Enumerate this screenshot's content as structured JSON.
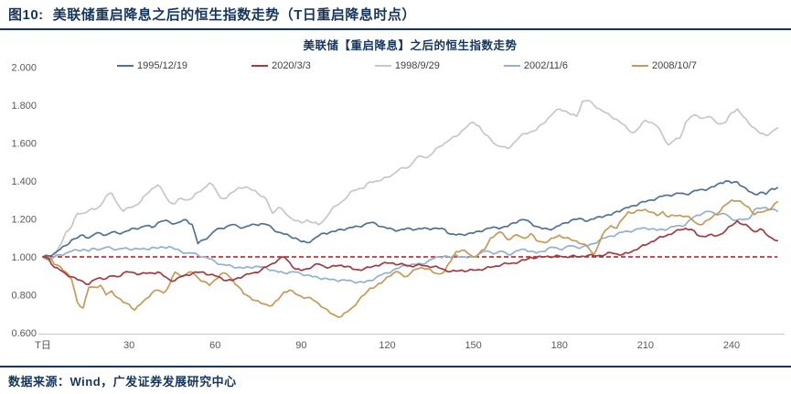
{
  "header": {
    "figure_label": "图10:",
    "title": "美联储重启降息之后的恒生指数走势（T日重启降息时点）"
  },
  "footer": {
    "source_text": "数据来源：Wind，广发证券发展研究中心"
  },
  "colors": {
    "accent_navy": "#15365c",
    "axis_text": "#595959",
    "axis_line": "#c8c8c8",
    "reference_red": "#e00000"
  },
  "chart_data": {
    "type": "line",
    "title": "美联储【重启降息】之后的恒生指数走势",
    "xlabel": "",
    "ylabel": "",
    "legend_position": "top",
    "grid": false,
    "x_axis": {
      "tick_days": [
        0,
        30,
        60,
        90,
        120,
        150,
        180,
        210,
        240
      ],
      "tick_labels": [
        "T日",
        "30",
        "60",
        "90",
        "120",
        "150",
        "180",
        "210",
        "240"
      ],
      "range_days": [
        0,
        256
      ]
    },
    "y_axis": {
      "ticks": [
        0.6,
        0.8,
        1.0,
        1.2,
        1.4,
        1.6,
        1.8,
        2.0
      ],
      "tick_labels": [
        "0.600",
        "0.800",
        "1.000",
        "1.200",
        "1.400",
        "1.600",
        "1.800",
        "2.000"
      ],
      "range": [
        0.6,
        2.0
      ]
    },
    "reference_line": {
      "value": 1.0,
      "color": "#e00000",
      "style": "dashed"
    },
    "sample_step_days": 2,
    "series": [
      {
        "name": "1995/12/19",
        "color": "#4e7293",
        "values": [
          1.0,
          1.005,
          1.02,
          1.04,
          1.06,
          1.09,
          1.1,
          1.115,
          1.1,
          1.12,
          1.125,
          1.115,
          1.13,
          1.125,
          1.13,
          1.14,
          1.15,
          1.155,
          1.165,
          1.155,
          1.18,
          1.19,
          1.185,
          1.175,
          1.185,
          1.195,
          1.17,
          1.07,
          1.09,
          1.11,
          1.14,
          1.15,
          1.16,
          1.17,
          1.16,
          1.155,
          1.165,
          1.17,
          1.175,
          1.17,
          1.15,
          1.13,
          1.12,
          1.11,
          1.1,
          1.08,
          1.075,
          1.09,
          1.11,
          1.125,
          1.13,
          1.135,
          1.145,
          1.15,
          1.155,
          1.16,
          1.17,
          1.18,
          1.175,
          1.16,
          1.15,
          1.145,
          1.14,
          1.145,
          1.15,
          1.145,
          1.148,
          1.15,
          1.15,
          1.148,
          1.145,
          1.12,
          1.115,
          1.118,
          1.122,
          1.125,
          1.135,
          1.145,
          1.152,
          1.155,
          1.155,
          1.16,
          1.18,
          1.192,
          1.195,
          1.18,
          1.16,
          1.148,
          1.147,
          1.15,
          1.165,
          1.18,
          1.192,
          1.198,
          1.2,
          1.19,
          1.2,
          1.212,
          1.218,
          1.22,
          1.24,
          1.25,
          1.26,
          1.27,
          1.285,
          1.29,
          1.3,
          1.31,
          1.32,
          1.325,
          1.33,
          1.335,
          1.33,
          1.34,
          1.35,
          1.355,
          1.36,
          1.37,
          1.39,
          1.4,
          1.39,
          1.395,
          1.37,
          1.345,
          1.33,
          1.34,
          1.33,
          1.36,
          1.365
        ]
      },
      {
        "name": "2020/3/3",
        "color": "#a13b40",
        "values": [
          1.0,
          0.99,
          0.945,
          0.93,
          0.91,
          0.895,
          0.88,
          0.87,
          0.855,
          0.88,
          0.89,
          0.885,
          0.9,
          0.895,
          0.915,
          0.92,
          0.915,
          0.91,
          0.913,
          0.915,
          0.92,
          0.9,
          0.88,
          0.875,
          0.895,
          0.905,
          0.912,
          0.918,
          0.92,
          0.905,
          0.9,
          0.89,
          0.875,
          0.875,
          0.89,
          0.9,
          0.91,
          0.918,
          0.93,
          0.948,
          0.965,
          0.985,
          1.0,
          0.97,
          0.935,
          0.928,
          0.938,
          0.95,
          0.963,
          0.95,
          0.945,
          0.952,
          0.956,
          0.95,
          0.935,
          0.932,
          0.938,
          0.944,
          0.955,
          0.962,
          0.967,
          0.968,
          0.96,
          0.958,
          0.952,
          0.955,
          0.955,
          0.952,
          0.948,
          0.942,
          0.933,
          0.922,
          0.925,
          0.93,
          0.926,
          0.93,
          0.933,
          0.938,
          0.945,
          0.952,
          0.96,
          0.964,
          0.968,
          0.974,
          0.983,
          0.998,
          0.995,
          1.0,
          1.004,
          1.0,
          1.004,
          1.0,
          1.004,
          1.0,
          1.004,
          1.008,
          1.005,
          1.008,
          1.012,
          1.022,
          1.016,
          1.012,
          1.02,
          1.035,
          1.05,
          1.062,
          1.08,
          1.095,
          1.105,
          1.118,
          1.13,
          1.142,
          1.15,
          1.145,
          1.115,
          1.108,
          1.115,
          1.11,
          1.118,
          1.14,
          1.165,
          1.19,
          1.17,
          1.158,
          1.132,
          1.148,
          1.12,
          1.1,
          1.085
        ]
      },
      {
        "name": "1998/9/29",
        "color": "#c7c7c7",
        "values": [
          1.0,
          0.98,
          1.0,
          1.06,
          1.13,
          1.16,
          1.23,
          1.23,
          1.245,
          1.25,
          1.27,
          1.32,
          1.335,
          1.28,
          1.24,
          1.26,
          1.27,
          1.29,
          1.33,
          1.36,
          1.38,
          1.34,
          1.29,
          1.28,
          1.31,
          1.3,
          1.31,
          1.34,
          1.36,
          1.39,
          1.36,
          1.31,
          1.31,
          1.34,
          1.365,
          1.365,
          1.36,
          1.35,
          1.32,
          1.3,
          1.23,
          1.26,
          1.24,
          1.21,
          1.19,
          1.18,
          1.195,
          1.18,
          1.17,
          1.195,
          1.235,
          1.27,
          1.29,
          1.315,
          1.35,
          1.36,
          1.365,
          1.395,
          1.4,
          1.405,
          1.42,
          1.435,
          1.46,
          1.468,
          1.48,
          1.52,
          1.53,
          1.525,
          1.55,
          1.58,
          1.6,
          1.62,
          1.635,
          1.665,
          1.69,
          1.71,
          1.69,
          1.645,
          1.62,
          1.59,
          1.58,
          1.57,
          1.6,
          1.63,
          1.65,
          1.66,
          1.67,
          1.7,
          1.73,
          1.76,
          1.78,
          1.77,
          1.75,
          1.74,
          1.82,
          1.825,
          1.8,
          1.78,
          1.76,
          1.74,
          1.725,
          1.7,
          1.67,
          1.655,
          1.685,
          1.72,
          1.71,
          1.69,
          1.64,
          1.59,
          1.615,
          1.625,
          1.71,
          1.74,
          1.745,
          1.73,
          1.74,
          1.72,
          1.7,
          1.71,
          1.76,
          1.78,
          1.74,
          1.705,
          1.68,
          1.65,
          1.64,
          1.66,
          1.68
        ]
      },
      {
        "name": "2002/11/6",
        "color": "#92b1cc",
        "values": [
          1.0,
          0.99,
          1.0,
          1.01,
          1.02,
          1.03,
          1.035,
          1.04,
          1.03,
          1.045,
          1.04,
          1.05,
          1.045,
          1.04,
          1.045,
          1.04,
          1.045,
          1.04,
          1.04,
          1.05,
          1.045,
          1.05,
          1.055,
          1.04,
          1.03,
          1.02,
          1.02,
          1.01,
          1.0,
          0.99,
          0.975,
          0.96,
          0.955,
          0.95,
          0.945,
          0.94,
          0.945,
          0.95,
          0.945,
          0.94,
          0.93,
          0.92,
          0.915,
          0.92,
          0.92,
          0.91,
          0.905,
          0.895,
          0.89,
          0.887,
          0.88,
          0.877,
          0.878,
          0.875,
          0.87,
          0.868,
          0.865,
          0.875,
          0.89,
          0.905,
          0.915,
          0.93,
          0.94,
          0.955,
          0.958,
          0.96,
          0.963,
          0.975,
          0.99,
          1.0,
          1.005,
          0.995,
          1.01,
          1.0,
          0.995,
          1.0,
          1.015,
          1.03,
          1.025,
          1.02,
          1.03,
          1.012,
          1.022,
          1.035,
          1.04,
          1.03,
          1.02,
          1.028,
          1.045,
          1.05,
          1.04,
          1.05,
          1.058,
          1.05,
          1.053,
          1.06,
          1.07,
          1.09,
          1.1,
          1.11,
          1.12,
          1.13,
          1.135,
          1.14,
          1.148,
          1.153,
          1.148,
          1.14,
          1.145,
          1.15,
          1.16,
          1.165,
          1.17,
          1.2,
          1.22,
          1.23,
          1.24,
          1.23,
          1.225,
          1.225,
          1.2,
          1.195,
          1.195,
          1.2,
          1.25,
          1.255,
          1.26,
          1.25,
          1.24
        ]
      },
      {
        "name": "2008/10/7",
        "color": "#c59a55",
        "values": [
          1.0,
          1.0,
          0.96,
          0.95,
          0.92,
          0.88,
          0.76,
          0.73,
          0.84,
          0.84,
          0.85,
          0.8,
          0.82,
          0.785,
          0.76,
          0.75,
          0.72,
          0.75,
          0.78,
          0.81,
          0.825,
          0.81,
          0.85,
          0.92,
          0.9,
          0.91,
          0.92,
          0.89,
          0.87,
          0.85,
          0.88,
          0.91,
          0.91,
          0.88,
          0.845,
          0.805,
          0.79,
          0.77,
          0.755,
          0.748,
          0.745,
          0.775,
          0.815,
          0.825,
          0.805,
          0.792,
          0.785,
          0.775,
          0.755,
          0.73,
          0.705,
          0.69,
          0.685,
          0.71,
          0.735,
          0.77,
          0.8,
          0.835,
          0.845,
          0.862,
          0.895,
          0.912,
          0.92,
          0.895,
          0.912,
          0.935,
          0.944,
          0.938,
          0.917,
          0.91,
          0.925,
          0.975,
          1.028,
          1.035,
          1.02,
          1.0,
          1.018,
          1.04,
          1.1,
          1.12,
          1.128,
          1.09,
          1.11,
          1.11,
          1.098,
          1.123,
          1.086,
          1.079,
          1.081,
          1.1,
          1.114,
          1.1,
          1.09,
          1.084,
          1.068,
          1.05,
          1.012,
          1.078,
          1.14,
          1.165,
          1.152,
          1.2,
          1.238,
          1.232,
          1.245,
          1.25,
          1.235,
          1.218,
          1.238,
          1.21,
          1.218,
          1.22,
          1.214,
          1.2,
          1.175,
          1.172,
          1.195,
          1.222,
          1.24,
          1.275,
          1.3,
          1.295,
          1.28,
          1.262,
          1.222,
          1.235,
          1.245,
          1.258,
          1.29
        ]
      }
    ]
  }
}
